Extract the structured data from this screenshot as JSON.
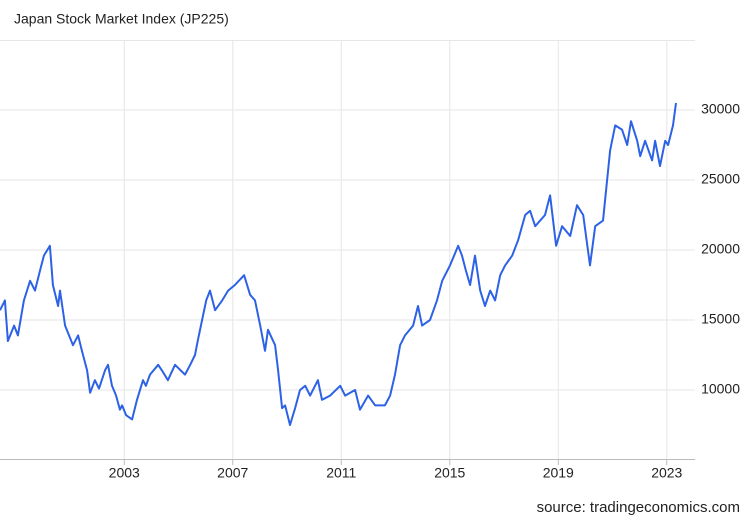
{
  "chart_data": {
    "type": "line",
    "title": "Japan Stock Market Index (JP225)",
    "source": "source: tradingeconomics.com",
    "x": [
      1998.42,
      1998.6,
      1998.71,
      1998.94,
      1999.08,
      1999.3,
      1999.53,
      1999.71,
      1999.89,
      2000.04,
      2000.26,
      2000.37,
      2000.56,
      2000.63,
      2000.82,
      2001.11,
      2001.3,
      2001.44,
      2001.63,
      2001.74,
      2001.92,
      2002.07,
      2002.29,
      2002.4,
      2002.55,
      2002.7,
      2002.84,
      2002.92,
      2003.07,
      2003.29,
      2003.47,
      2003.69,
      2003.8,
      2003.95,
      2004.25,
      2004.39,
      2004.61,
      2004.87,
      2005.24,
      2005.43,
      2005.61,
      2005.72,
      2005.87,
      2006.02,
      2006.16,
      2006.35,
      2006.61,
      2006.83,
      2007.08,
      2007.42,
      2007.64,
      2007.82,
      2008.01,
      2008.19,
      2008.3,
      2008.56,
      2008.67,
      2008.82,
      2008.93,
      2009.11,
      2009.3,
      2009.48,
      2009.67,
      2009.85,
      2010.14,
      2010.29,
      2010.59,
      2010.96,
      2011.14,
      2011.51,
      2011.69,
      2011.99,
      2012.25,
      2012.61,
      2012.8,
      2012.98,
      2013.17,
      2013.35,
      2013.65,
      2013.83,
      2013.98,
      2014.27,
      2014.53,
      2014.72,
      2015.01,
      2015.31,
      2015.45,
      2015.6,
      2015.75,
      2015.93,
      2016.12,
      2016.3,
      2016.49,
      2016.67,
      2016.86,
      2017.04,
      2017.3,
      2017.52,
      2017.78,
      2017.96,
      2018.15,
      2018.51,
      2018.7,
      2018.92,
      2019.14,
      2019.44,
      2019.69,
      2019.92,
      2020.17,
      2020.36,
      2020.65,
      2020.91,
      2021.1,
      2021.35,
      2021.54,
      2021.68,
      2021.91,
      2022.02,
      2022.2,
      2022.46,
      2022.57,
      2022.75,
      2022.94,
      2023.05,
      2023.23,
      2023.34
    ],
    "series": [
      {
        "name": "JP225",
        "color": "#2d62e6",
        "values": [
          15700,
          16400,
          13500,
          14600,
          13900,
          16400,
          17800,
          17100,
          18500,
          19600,
          20300,
          17500,
          16000,
          17100,
          14600,
          13200,
          13900,
          12800,
          11400,
          9800,
          10700,
          10100,
          11400,
          11800,
          10300,
          9600,
          8600,
          8900,
          8200,
          7900,
          9300,
          10700,
          10300,
          11100,
          11800,
          11400,
          10700,
          11800,
          11100,
          11800,
          12500,
          13600,
          15000,
          16400,
          17100,
          15700,
          16400,
          17100,
          17500,
          18200,
          16800,
          16400,
          14600,
          12800,
          14300,
          13200,
          11400,
          8700,
          8900,
          7500,
          8700,
          10000,
          10300,
          9600,
          10700,
          9300,
          9600,
          10300,
          9600,
          10000,
          8600,
          9600,
          8900,
          8900,
          9600,
          11100,
          13200,
          13900,
          14600,
          16000,
          14600,
          15000,
          16400,
          17800,
          18900,
          20300,
          19600,
          18500,
          17500,
          19600,
          17100,
          16000,
          17100,
          16400,
          18200,
          18900,
          19600,
          20700,
          22500,
          22800,
          21700,
          22500,
          23900,
          20300,
          21700,
          21000,
          23200,
          22500,
          18900,
          21700,
          22100,
          27100,
          28900,
          28600,
          27500,
          29200,
          27800,
          26700,
          27800,
          26400,
          27800,
          26000,
          27800,
          27500,
          28900,
          30500
        ]
      }
    ],
    "xlim": [
      1998.42,
      2024.04
    ],
    "ylim": [
      5000,
      35000
    ],
    "xticks": [
      2003,
      2007,
      2011,
      2015,
      2019,
      2023
    ],
    "yticks": [
      10000,
      15000,
      20000,
      25000,
      30000
    ],
    "grid": true
  }
}
